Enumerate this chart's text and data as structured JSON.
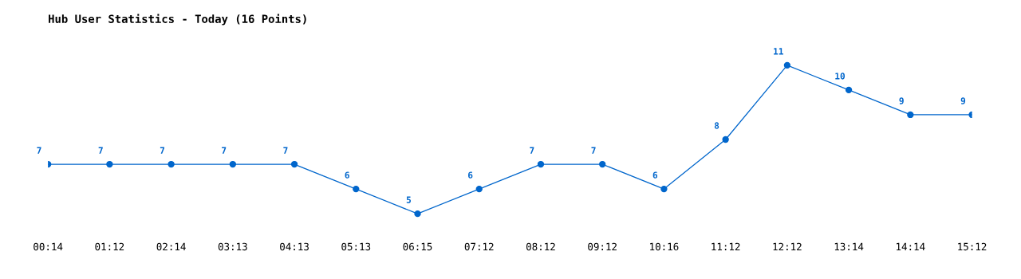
{
  "chart_data": {
    "type": "line",
    "title": "Hub User Statistics - Today (16 Points)",
    "categories": [
      "00:14",
      "01:12",
      "02:14",
      "03:13",
      "04:13",
      "05:13",
      "06:15",
      "07:12",
      "08:12",
      "09:12",
      "10:16",
      "11:12",
      "12:12",
      "13:14",
      "14:14",
      "15:12"
    ],
    "series": [
      {
        "color": "#0066cc",
        "values": [
          7,
          7,
          7,
          7,
          7,
          6,
          5,
          6,
          7,
          7,
          6,
          8,
          11,
          10,
          9,
          9
        ]
      }
    ],
    "data_labels": true,
    "marker": "circle",
    "line_style": "solid",
    "grid": false,
    "legend": false,
    "tick_labels": "x"
  }
}
